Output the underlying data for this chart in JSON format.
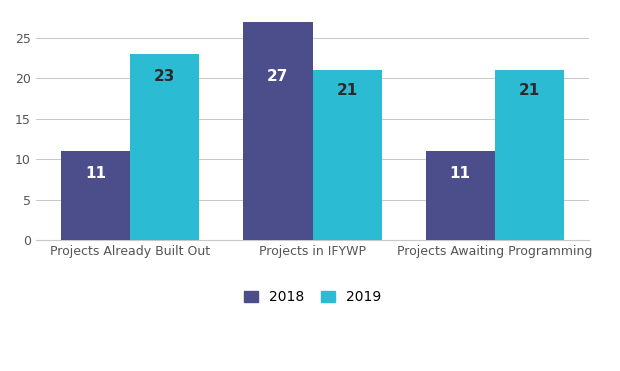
{
  "categories": [
    "Projects Already Built Out",
    "Projects in IFYWP",
    "Projects Awaiting Programming"
  ],
  "values_2018": [
    11,
    27,
    11
  ],
  "values_2019": [
    23,
    21,
    21
  ],
  "color_2018": "#4B4E8A",
  "color_2019": "#2BBCD4",
  "label_2018": "2018",
  "label_2019": "2019",
  "ylim": [
    0,
    25
  ],
  "yticks": [
    0,
    5,
    10,
    15,
    20,
    25
  ],
  "bar_width": 0.38,
  "label_color_dark": "#2a2a2a",
  "label_color_white": "#ffffff",
  "label_fontsize": 11,
  "tick_fontsize": 9,
  "legend_fontsize": 10,
  "background_color": "#ffffff",
  "grid_color": "#c8c8c8"
}
